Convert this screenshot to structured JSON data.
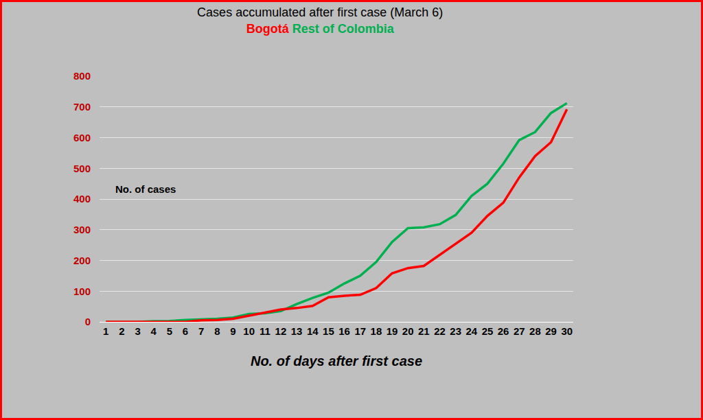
{
  "chart_data": {
    "type": "line",
    "title": "Cases accumulated after first case (March 6)",
    "xlabel": "No. of days after first case",
    "ylabel": "No. of cases",
    "x": [
      1,
      2,
      3,
      4,
      5,
      6,
      7,
      8,
      9,
      10,
      11,
      12,
      13,
      14,
      15,
      16,
      17,
      18,
      19,
      20,
      21,
      22,
      23,
      24,
      25,
      26,
      27,
      28,
      29,
      30
    ],
    "series": [
      {
        "name": "Bogotá",
        "color": "#ff0000",
        "values": [
          0,
          0,
          0,
          1,
          1,
          0,
          5,
          6,
          10,
          20,
          30,
          40,
          45,
          52,
          80,
          85,
          88,
          110,
          158,
          175,
          182,
          218,
          255,
          290,
          345,
          388,
          470,
          540,
          585,
          692
        ]
      },
      {
        "name": "Rest of Colombia",
        "color": "#00b050",
        "values": [
          0,
          0,
          0,
          2,
          3,
          6,
          8,
          10,
          14,
          26,
          28,
          35,
          58,
          78,
          95,
          125,
          150,
          195,
          260,
          305,
          308,
          318,
          348,
          410,
          450,
          515,
          592,
          618,
          680,
          712
        ]
      }
    ],
    "xlim": [
      0.6,
      30.4
    ],
    "xticks": [
      1,
      2,
      3,
      4,
      5,
      6,
      7,
      8,
      9,
      10,
      11,
      12,
      13,
      14,
      15,
      16,
      17,
      18,
      19,
      20,
      21,
      22,
      23,
      24,
      25,
      26,
      27,
      28,
      29,
      30
    ],
    "ylim": [
      0,
      800
    ],
    "yticks": [
      0,
      100,
      200,
      300,
      400,
      500,
      600,
      700,
      800
    ],
    "grid": true
  }
}
